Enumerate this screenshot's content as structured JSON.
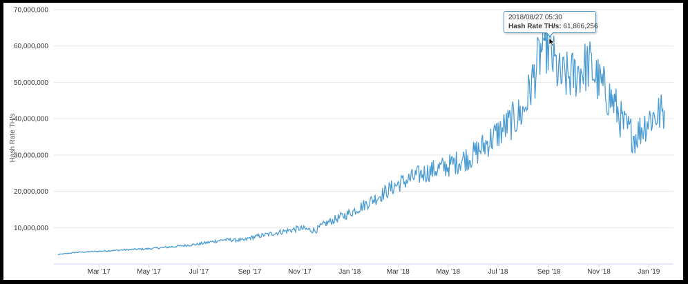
{
  "chart_data": {
    "type": "line",
    "title": "",
    "xlabel": "",
    "ylabel": "Hash Rate TH/s",
    "ylim": [
      0,
      70000000
    ],
    "y_ticks": [
      10000000,
      20000000,
      30000000,
      40000000,
      50000000,
      60000000,
      70000000
    ],
    "y_tick_labels": [
      "10,000,000",
      "20,000,000",
      "30,000,000",
      "40,000,000",
      "50,000,000",
      "60,000,000",
      "70,000,000"
    ],
    "x_range": [
      "2017-01-05",
      "2019-01-31"
    ],
    "x_ticks": [
      "2017-03-01",
      "2017-05-01",
      "2017-07-01",
      "2017-09-01",
      "2017-11-01",
      "2018-01-01",
      "2018-03-01",
      "2018-05-01",
      "2018-07-01",
      "2018-09-01",
      "2018-11-01",
      "2019-01-01"
    ],
    "x_tick_labels": [
      "Mar '17",
      "May '17",
      "Jul '17",
      "Sep '17",
      "Nov '17",
      "Jan '18",
      "Mar '18",
      "May '18",
      "Jul '18",
      "Sep '18",
      "Nov '18",
      "Jan '19"
    ],
    "grid": true,
    "line_color": "#4a9bd1",
    "series": [
      {
        "name": "Hash Rate TH/s",
        "x": [
          "2017-01-10",
          "2017-02-01",
          "2017-03-01",
          "2017-04-01",
          "2017-05-01",
          "2017-06-01",
          "2017-07-01",
          "2017-08-01",
          "2017-08-25",
          "2017-09-01",
          "2017-10-01",
          "2017-11-01",
          "2017-11-20",
          "2017-12-01",
          "2018-01-01",
          "2018-02-01",
          "2018-03-01",
          "2018-04-01",
          "2018-05-01",
          "2018-06-01",
          "2018-07-01",
          "2018-08-01",
          "2018-08-27",
          "2018-09-15",
          "2018-10-01",
          "2018-10-20",
          "2018-11-01",
          "2018-11-20",
          "2018-12-01",
          "2018-12-15",
          "2019-01-01",
          "2019-01-20"
        ],
        "values": [
          2600000,
          3200000,
          3500000,
          3900000,
          4200000,
          4800000,
          5500000,
          6700000,
          6500000,
          7200000,
          8500000,
          9800000,
          9200000,
          11000000,
          14000000,
          18000000,
          22000000,
          25000000,
          27000000,
          30000000,
          36000000,
          42000000,
          61866256,
          51000000,
          52000000,
          55000000,
          50000000,
          44000000,
          38000000,
          35000000,
          40000000,
          42000000
        ]
      }
    ],
    "tooltip": {
      "date": "2018/08/27 05:30",
      "series_label": "Hash Rate TH/s:",
      "value": "61,866,256"
    }
  }
}
